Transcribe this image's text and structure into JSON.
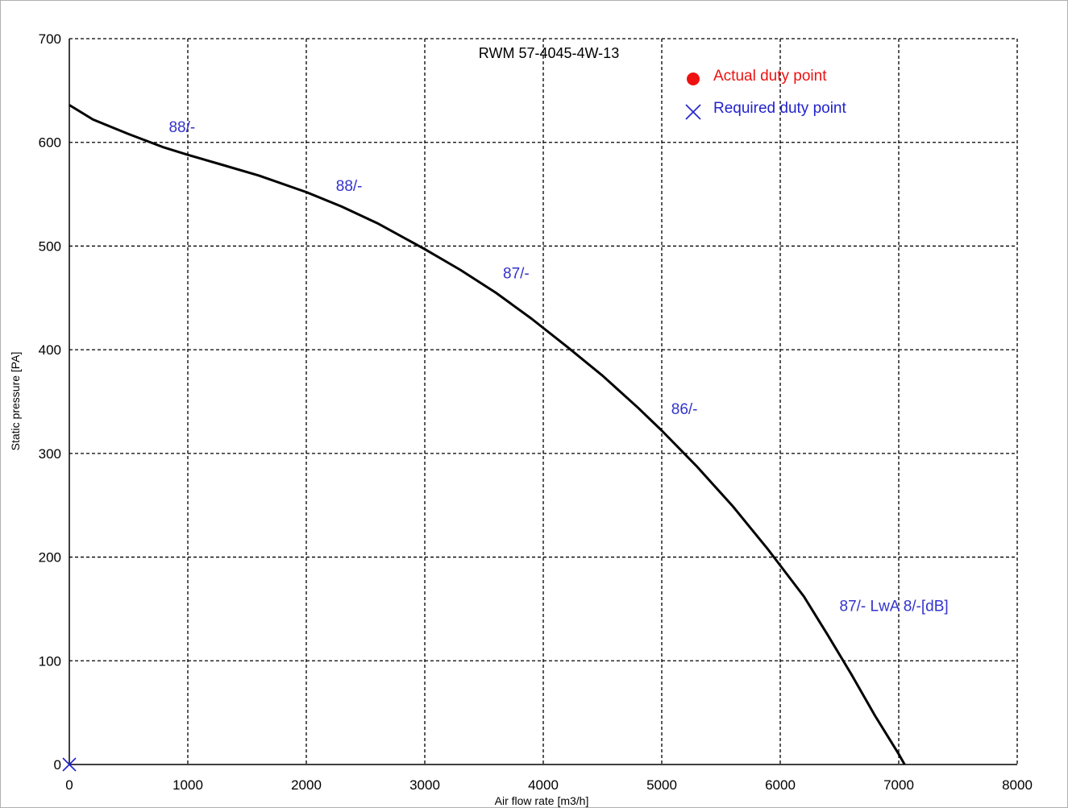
{
  "chart_data": {
    "type": "line",
    "title": "RWM 57-4045-4W-13",
    "xlabel": "Air flow rate [m3/h]",
    "ylabel": "Static pressure [PA]",
    "xlim": [
      0,
      8000
    ],
    "ylim": [
      0,
      700
    ],
    "x_ticks": [
      0,
      1000,
      2000,
      3000,
      4000,
      5000,
      6000,
      7000,
      8000
    ],
    "y_ticks": [
      0,
      100,
      200,
      300,
      400,
      500,
      600,
      700
    ],
    "x_tick_labels": [
      "0",
      "1000",
      "2000",
      "3000",
      "4000",
      "5000",
      "6000",
      "7000",
      "8000"
    ],
    "y_tick_labels": [
      "0",
      "100",
      "200",
      "300",
      "400",
      "500",
      "600",
      "700"
    ],
    "grid": true,
    "series": [
      {
        "color": "#000000",
        "x": [
          0,
          200,
          500,
          800,
          1000,
          1300,
          1600,
          2000,
          2300,
          2600,
          3000,
          3300,
          3600,
          3900,
          4200,
          4500,
          4800,
          5000,
          5300,
          5600,
          5900,
          6200,
          6400,
          6600,
          6800,
          7000,
          7050
        ],
        "y": [
          636,
          622,
          608,
          595,
          588,
          578,
          568,
          552,
          538,
          522,
          497,
          477,
          455,
          430,
          403,
          375,
          344,
          322,
          287,
          249,
          207,
          162,
          125,
          87,
          47,
          10,
          0
        ]
      }
    ],
    "annotations": [
      {
        "text": "88/-",
        "x": 840,
        "y": 610
      },
      {
        "text": "88/-",
        "x": 2250,
        "y": 553
      },
      {
        "text": "87/-",
        "x": 3660,
        "y": 469
      },
      {
        "text": "86/-",
        "x": 5080,
        "y": 338
      },
      {
        "text": "87/- LwA 8/-[dB]",
        "x": 6500,
        "y": 148
      }
    ],
    "annotation_color": "#3333cc",
    "legend": {
      "placement": "top-right",
      "items": [
        {
          "label": "Actual duty point",
          "marker": "filled-circle",
          "color": "#ee1111"
        },
        {
          "label": "Required duty point",
          "marker": "x-cross",
          "color": "#2222cc"
        }
      ]
    },
    "required_duty_point": {
      "x": 0,
      "y": 0,
      "color": "#2222cc"
    }
  }
}
